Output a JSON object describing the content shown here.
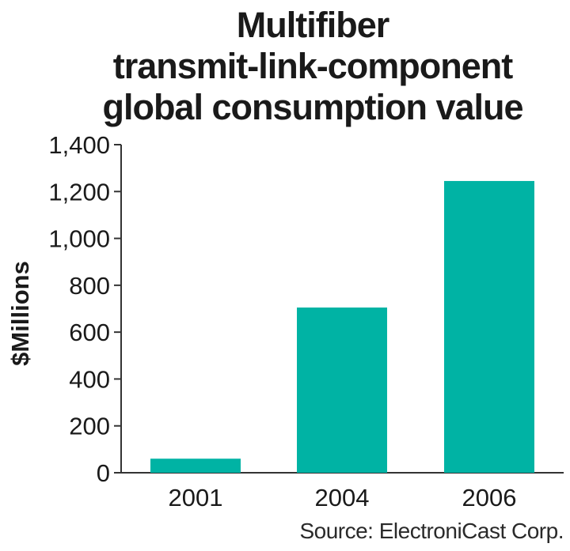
{
  "chart_data": {
    "type": "bar",
    "title_lines": [
      "Multifiber",
      "transmit-link-component",
      "global consumption value"
    ],
    "ylabel": "$Millions",
    "xlabel": "",
    "categories": [
      "2001",
      "2004",
      "2006"
    ],
    "values": [
      60,
      705,
      1245
    ],
    "ylim": [
      0,
      1400
    ],
    "yticks": [
      0,
      200,
      400,
      600,
      800,
      1000,
      1200,
      1400
    ],
    "ytick_labels": [
      "0",
      "200",
      "400",
      "600",
      "800",
      "1,000",
      "1,200",
      "1,400"
    ],
    "grid": false,
    "bar_color": "#00b3a4",
    "source": "Source: ElectroniCast Corp."
  }
}
